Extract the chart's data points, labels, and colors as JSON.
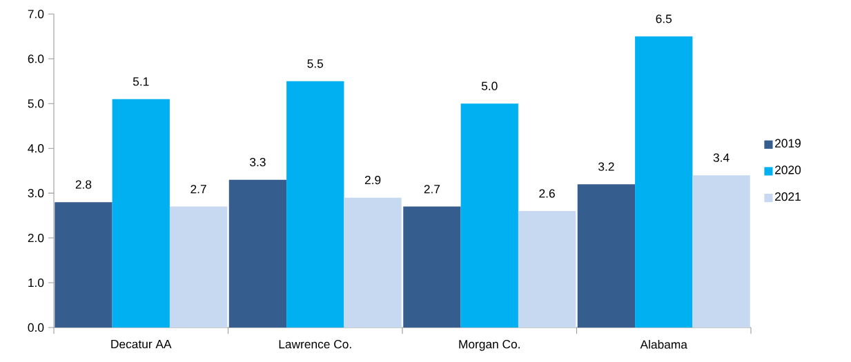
{
  "chart_data": {
    "type": "bar",
    "categories": [
      "Decatur AA",
      "Lawrence Co.",
      "Morgan Co.",
      "Alabama"
    ],
    "series": [
      {
        "name": "2019",
        "color": "#355e8e",
        "values": [
          2.8,
          3.3,
          2.7,
          3.2
        ],
        "value_labels": [
          "2.8",
          "3.3",
          "2.7",
          "3.2"
        ]
      },
      {
        "name": "2020",
        "color": "#00b0f0",
        "values": [
          5.1,
          5.5,
          5.0,
          6.5
        ],
        "value_labels": [
          "5.1",
          "5.5",
          "5.0",
          "6.5"
        ]
      },
      {
        "name": "2021",
        "color": "#c6d9f0",
        "values": [
          2.7,
          2.9,
          2.6,
          3.4
        ],
        "value_labels": [
          "2.7",
          "2.9",
          "2.6",
          "3.4"
        ]
      }
    ],
    "ylim": [
      0,
      7
    ],
    "yticks": [
      {
        "value": 0,
        "label": "0.0"
      },
      {
        "value": 1,
        "label": "1.0"
      },
      {
        "value": 2,
        "label": "2.0"
      },
      {
        "value": 3,
        "label": "3.0"
      },
      {
        "value": 4,
        "label": "4.0"
      },
      {
        "value": 5,
        "label": "5.0"
      },
      {
        "value": 6,
        "label": "6.0"
      },
      {
        "value": 7,
        "label": "7.0"
      }
    ],
    "legend": "right",
    "grid": false
  }
}
